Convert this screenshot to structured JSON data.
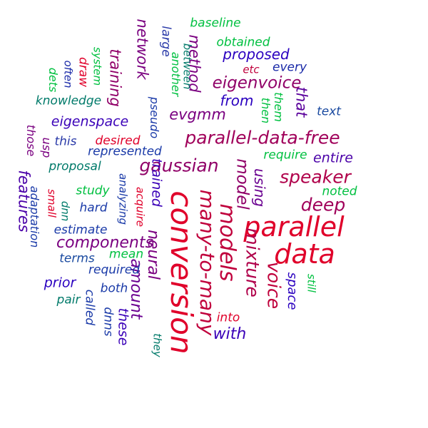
{
  "words": [
    {
      "text": "parallel",
      "color": "#e0002a"
    },
    {
      "text": "data",
      "color": "#e0002a"
    },
    {
      "text": "conversion",
      "color": "#e0002a"
    },
    {
      "text": "many-to-many",
      "color": "#c0003c"
    },
    {
      "text": "models",
      "color": "#c0003c"
    },
    {
      "text": "mixture",
      "color": "#b0004a"
    },
    {
      "text": "voice",
      "color": "#c0003c"
    },
    {
      "text": "parallel-data-free",
      "color": "#a0005a"
    },
    {
      "text": "gaussian",
      "color": "#900068"
    },
    {
      "text": "speaker",
      "color": "#b0004a"
    },
    {
      "text": "deep",
      "color": "#a0005a"
    },
    {
      "text": "model",
      "color": "#900068"
    },
    {
      "text": "eigenvoice",
      "color": "#900068"
    },
    {
      "text": "neural",
      "color": "#7a0080"
    },
    {
      "text": "amount",
      "color": "#6a0090"
    },
    {
      "text": "components",
      "color": "#7a0080"
    },
    {
      "text": "with",
      "color": "#3a00b8"
    },
    {
      "text": "evgmm",
      "color": "#7a0080"
    },
    {
      "text": "method",
      "color": "#7a0080"
    },
    {
      "text": "network",
      "color": "#7a0080"
    },
    {
      "text": "training",
      "color": "#900068"
    },
    {
      "text": "features",
      "color": "#4a00a8"
    },
    {
      "text": "using",
      "color": "#6a0090"
    },
    {
      "text": "that",
      "color": "#5a009c"
    },
    {
      "text": "trained",
      "color": "#3a00b8"
    },
    {
      "text": "prior",
      "color": "#2a00c0"
    },
    {
      "text": "these",
      "color": "#3a00b8"
    },
    {
      "text": "proposed",
      "color": "#2a00c0"
    },
    {
      "text": "from",
      "color": "#2a00c0"
    },
    {
      "text": "eigenspace",
      "color": "#3a00b8"
    },
    {
      "text": "entire",
      "color": "#4a00a8"
    },
    {
      "text": "space",
      "color": "#2a00c0"
    },
    {
      "text": "dnns",
      "color": "#1a3aa8"
    },
    {
      "text": "both",
      "color": "#1a3aa8"
    },
    {
      "text": "required",
      "color": "#1a3aa8"
    },
    {
      "text": "estimate",
      "color": "#1a3aa8"
    },
    {
      "text": "represented",
      "color": "#1a3aa8"
    },
    {
      "text": "every",
      "color": "#1a2aa8"
    },
    {
      "text": "text",
      "color": "#1a4aa0"
    },
    {
      "text": "terms",
      "color": "#1a4aa0"
    },
    {
      "text": "hard",
      "color": "#1a3aa8"
    },
    {
      "text": "this",
      "color": "#2a3aa8"
    },
    {
      "text": "called",
      "color": "#1a3aa8"
    },
    {
      "text": "large",
      "color": "#2a3aa8"
    },
    {
      "text": "adaptation",
      "color": "#1a3aa8"
    },
    {
      "text": "pseudo",
      "color": "#1a3aa8"
    },
    {
      "text": "knowledge",
      "color": "#007a6a"
    },
    {
      "text": "proposal",
      "color": "#007a6a"
    },
    {
      "text": "pair",
      "color": "#007a6a"
    },
    {
      "text": "they",
      "color": "#007a6a"
    },
    {
      "text": "between",
      "color": "#007a6a"
    },
    {
      "text": "dnn",
      "color": "#007a6a"
    },
    {
      "text": "analyzing",
      "color": "#1a3aa8"
    },
    {
      "text": "often",
      "color": "#1a2aa8"
    },
    {
      "text": "desired",
      "color": "#e0002a"
    },
    {
      "text": "into",
      "color": "#e0002a"
    },
    {
      "text": "acquire",
      "color": "#e0002a"
    },
    {
      "text": "draw",
      "color": "#e0002a"
    },
    {
      "text": "small",
      "color": "#e0002a"
    },
    {
      "text": "etc",
      "color": "#c0003c"
    },
    {
      "text": "those",
      "color": "#7a0080"
    },
    {
      "text": "usp",
      "color": "#7a0080"
    },
    {
      "text": "baseline",
      "color": "#00c040"
    },
    {
      "text": "obtained",
      "color": "#00c040"
    },
    {
      "text": "system",
      "color": "#00c040"
    },
    {
      "text": "another",
      "color": "#00c040"
    },
    {
      "text": "them",
      "color": "#00c040"
    },
    {
      "text": "then",
      "color": "#00c040"
    },
    {
      "text": "require",
      "color": "#00c040"
    },
    {
      "text": "noted",
      "color": "#00c040"
    },
    {
      "text": "study",
      "color": "#00c040"
    },
    {
      "text": "mean",
      "color": "#00c040"
    },
    {
      "text": "still",
      "color": "#00c040"
    },
    {
      "text": "dets",
      "color": "#00c040"
    }
  ]
}
